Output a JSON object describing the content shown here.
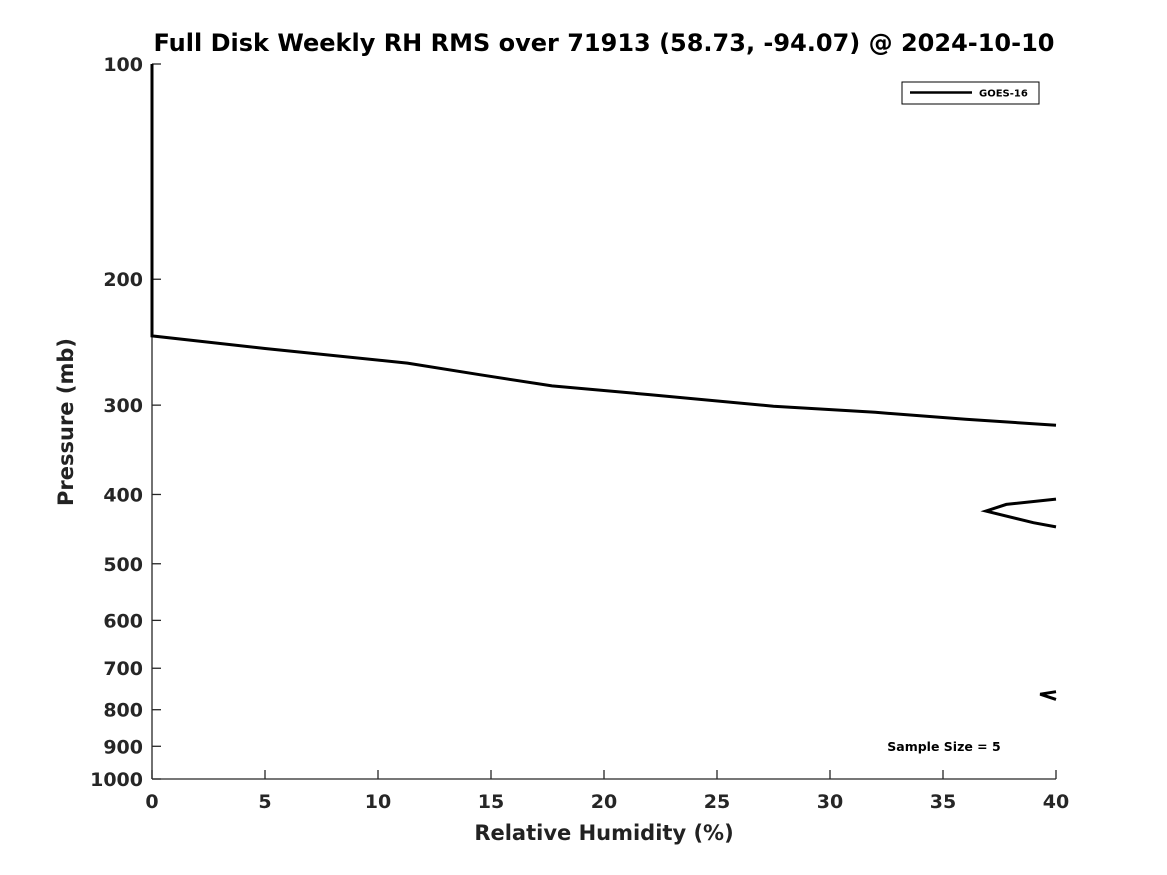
{
  "chart_data": {
    "type": "line",
    "title": "Full Disk Weekly RH RMS over 71913 (58.73, -94.07) @ 2024-10-10",
    "xlabel": "Relative Humidity (%)",
    "ylabel": "Pressure (mb)",
    "xlim": [
      0,
      40
    ],
    "ylim": [
      100,
      1000
    ],
    "y_scale": "log",
    "y_reversed": true,
    "grid": false,
    "legend_position": "top-right",
    "x_ticks": [
      0,
      5,
      10,
      15,
      20,
      25,
      30,
      35,
      40
    ],
    "x_tick_labels": [
      "0",
      "5",
      "10",
      "15",
      "20",
      "25",
      "30",
      "35",
      "40"
    ],
    "y_ticks": [
      100,
      200,
      300,
      400,
      500,
      600,
      700,
      800,
      900,
      1000
    ],
    "y_tick_labels": [
      "100",
      "200",
      "300",
      "400",
      "500",
      "600",
      "700",
      "800",
      "900",
      "1000"
    ],
    "series": [
      {
        "name": "GOES-16",
        "color": "#000000",
        "segments": [
          [
            [
              0,
              100
            ],
            [
              0,
              150
            ],
            [
              0,
              200
            ],
            [
              0,
              240
            ],
            [
              5,
              250
            ],
            [
              11.3,
              262
            ],
            [
              14.5,
              272
            ],
            [
              17.7,
              282
            ],
            [
              22,
              290
            ],
            [
              27.5,
              301
            ],
            [
              32,
              307
            ],
            [
              36,
              314
            ],
            [
              40,
              320
            ]
          ],
          [
            [
              40,
              406
            ],
            [
              37.8,
              413
            ],
            [
              36.9,
              422
            ],
            [
              39,
              438
            ],
            [
              40,
              444
            ]
          ],
          [
            [
              40,
              755
            ],
            [
              39.3,
              761
            ],
            [
              40,
              774
            ]
          ]
        ]
      }
    ],
    "annotation": "Sample Size = 5"
  }
}
